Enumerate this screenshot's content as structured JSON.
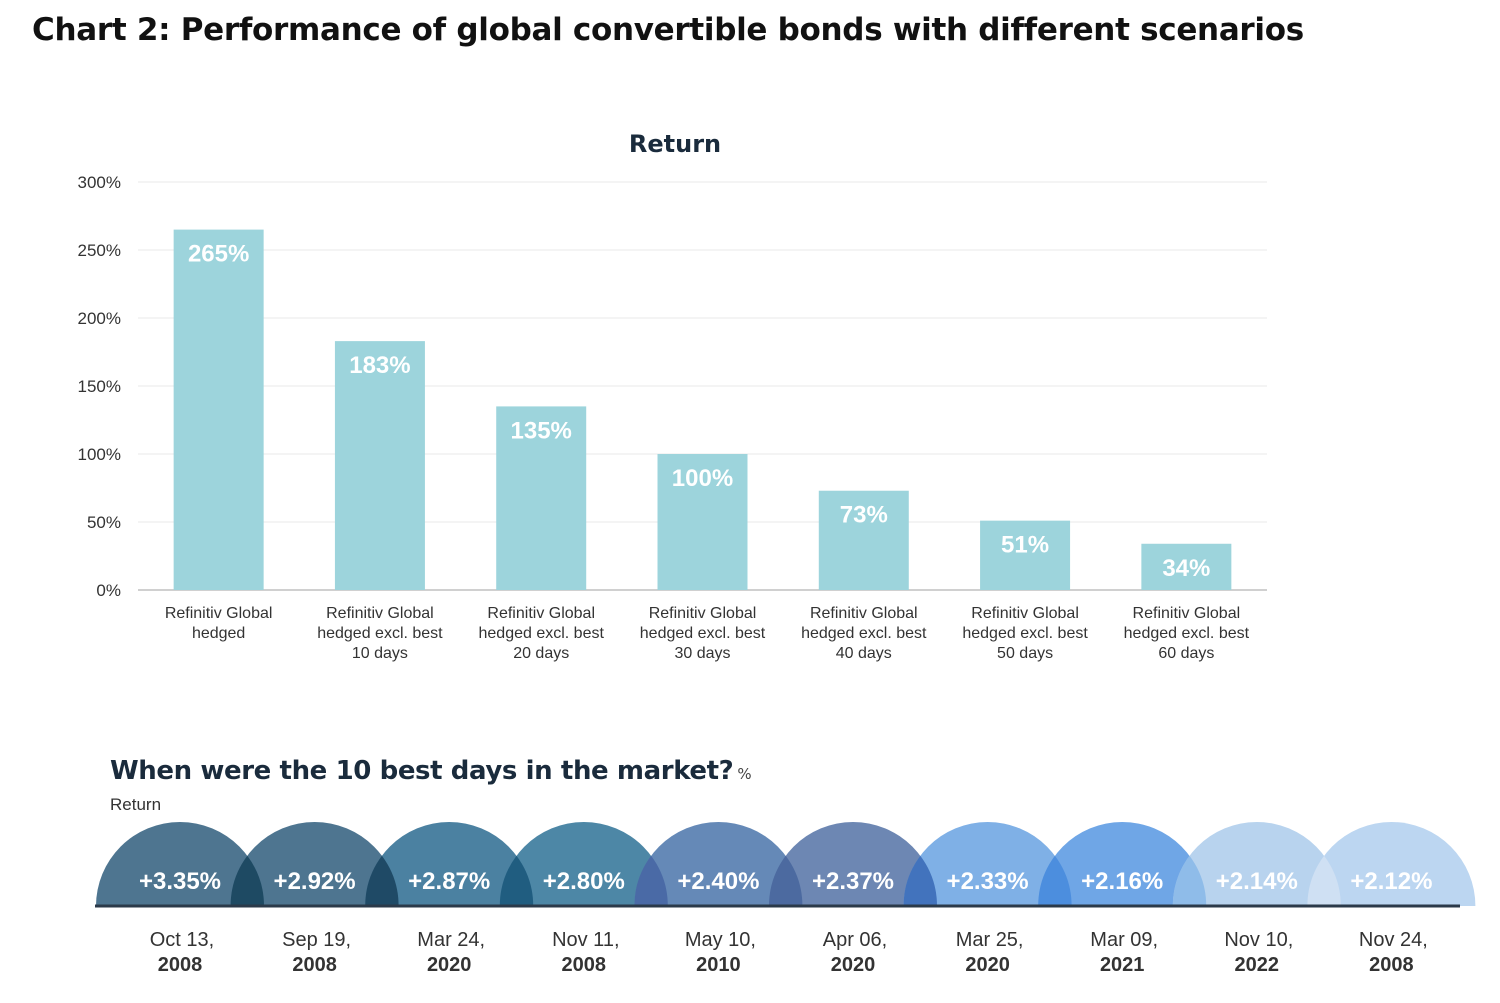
{
  "title": "Chart 2: Performance of global convertible bonds with different scenarios",
  "chart_data": [
    {
      "type": "bar",
      "title": "Return",
      "categories": [
        [
          "Refinitiv  Global",
          "hedged"
        ],
        [
          "Refinitiv  Global",
          "hedged excl. best",
          "10 days"
        ],
        [
          "Refinitiv  Global",
          "hedged excl. best",
          "20 days"
        ],
        [
          "Refinitiv  Global",
          "hedged excl. best",
          "30 days"
        ],
        [
          "Refinitiv  Global",
          "hedged excl. best",
          "40 days"
        ],
        [
          "Refinitiv  Global",
          "hedged excl. best",
          "50 days"
        ],
        [
          "Refinitiv  Global",
          "hedged excl. best",
          "60 days"
        ]
      ],
      "values": [
        265,
        183,
        135,
        100,
        73,
        51,
        34
      ],
      "data_labels": [
        "265%",
        "183%",
        "135%",
        "100%",
        "73%",
        "51%",
        "34%"
      ],
      "ylim": [
        0,
        300
      ],
      "yticks": [
        0,
        50,
        100,
        150,
        200,
        250,
        300
      ],
      "ytick_labels": [
        "0%",
        "50%",
        "100%",
        "150%",
        "200%",
        "250%",
        "300%"
      ],
      "grid": true,
      "bar_color": "#9dd4dc"
    },
    {
      "type": "other",
      "title": "When were the 10 best days in the market?",
      "unit": "%",
      "subtitle": "Return",
      "points": [
        {
          "value": 3.35,
          "label": "+3.35%",
          "date": "Oct 13,",
          "year": "2008"
        },
        {
          "value": 2.92,
          "label": "+2.92%",
          "date": "Sep 19,",
          "year": "2008"
        },
        {
          "value": 2.87,
          "label": "+2.87%",
          "date": "Mar 24,",
          "year": "2020"
        },
        {
          "value": 2.8,
          "label": "+2.80%",
          "date": "Nov 11,",
          "year": "2008"
        },
        {
          "value": 2.4,
          "label": "+2.40%",
          "date": "May 10,",
          "year": "2010"
        },
        {
          "value": 2.37,
          "label": "+2.37%",
          "date": "Apr 06,",
          "year": "2020"
        },
        {
          "value": 2.33,
          "label": "+2.33%",
          "date": "Mar 25,",
          "year": "2020"
        },
        {
          "value": 2.16,
          "label": "+2.16%",
          "date": "Mar 09,",
          "year": "2021"
        },
        {
          "value": 2.14,
          "label": "+2.14%",
          "date": "Nov 10,",
          "year": "2022"
        },
        {
          "value": 2.12,
          "label": "+2.12%",
          "date": "Nov 24,",
          "year": "2008"
        }
      ],
      "colors": [
        "#4e7590",
        "#4e7590",
        "#4b81a1",
        "#4d87a6",
        "#6589b7",
        "#6d87b3",
        "#7fb0e6",
        "#6fa6e6",
        "#b8d3ee",
        "#bcd6f1"
      ],
      "overlap_colors": [
        "#1e4a63",
        "#1f4a66",
        "#205d80",
        "#4a6aa6",
        "#4c6aa0",
        "#4273bd",
        "#4c8ede",
        "#8fbce9",
        "#cfe0f3"
      ]
    }
  ]
}
